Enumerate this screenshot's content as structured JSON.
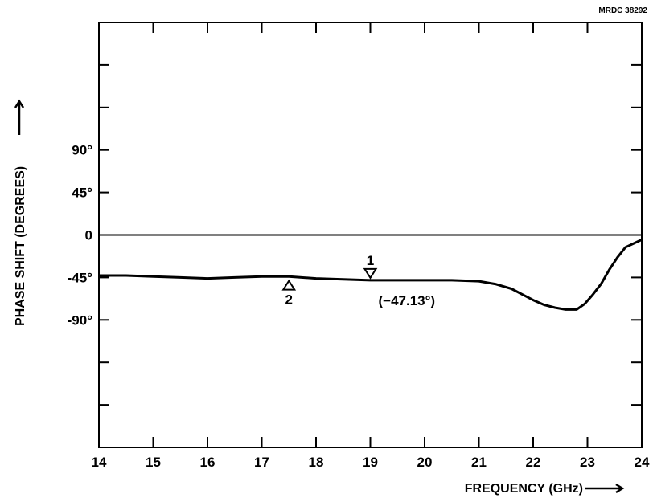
{
  "figure_id": "MRDC 38292",
  "chart_data": {
    "type": "line",
    "title": "",
    "xlabel": "FREQUENCY (GHz)",
    "ylabel": "PHASE SHIFT (DEGREES)",
    "xlim": [
      14,
      24
    ],
    "ylim": [
      -225,
      225
    ],
    "x_ticks": [
      14,
      15,
      16,
      17,
      18,
      19,
      20,
      21,
      22,
      23,
      24
    ],
    "x_tick_labels": [
      "14",
      "15",
      "16",
      "17",
      "18",
      "19",
      "20",
      "21",
      "22",
      "23",
      "24"
    ],
    "y_ticks_labeled": [
      90,
      45,
      0,
      -45,
      -90
    ],
    "y_tick_labels": [
      "90°",
      "45°",
      "0",
      "-45°",
      "-90°"
    ],
    "y_ticks_unlabeled": [
      180,
      135,
      -135,
      -180
    ],
    "zero_line": true,
    "grid": false,
    "series": [
      {
        "x": [
          14.0,
          14.5,
          15.0,
          15.5,
          16.0,
          16.5,
          17.0,
          17.5,
          18.0,
          18.5,
          19.0,
          19.5,
          20.0,
          20.5,
          21.0,
          21.3,
          21.6,
          21.8,
          22.0,
          22.2,
          22.4,
          22.6,
          22.8,
          22.95,
          23.1,
          23.25,
          23.4,
          23.55,
          23.7,
          23.85,
          24.0
        ],
        "y": [
          -43,
          -43,
          -44,
          -45,
          -46,
          -45,
          -44,
          -44,
          -46,
          -47,
          -48,
          -48,
          -48,
          -48,
          -49,
          -52,
          -57,
          -63,
          -69,
          -74,
          -77,
          -79,
          -79,
          -73,
          -63,
          -52,
          -37,
          -24,
          -13,
          -9,
          -5
        ]
      }
    ],
    "markers": [
      {
        "label": "1",
        "x": 19.0,
        "y": -47.13,
        "direction": "down",
        "value_label": "(−47.13°)"
      },
      {
        "label": "2",
        "x": 17.5,
        "y": -46,
        "direction": "up"
      }
    ]
  }
}
